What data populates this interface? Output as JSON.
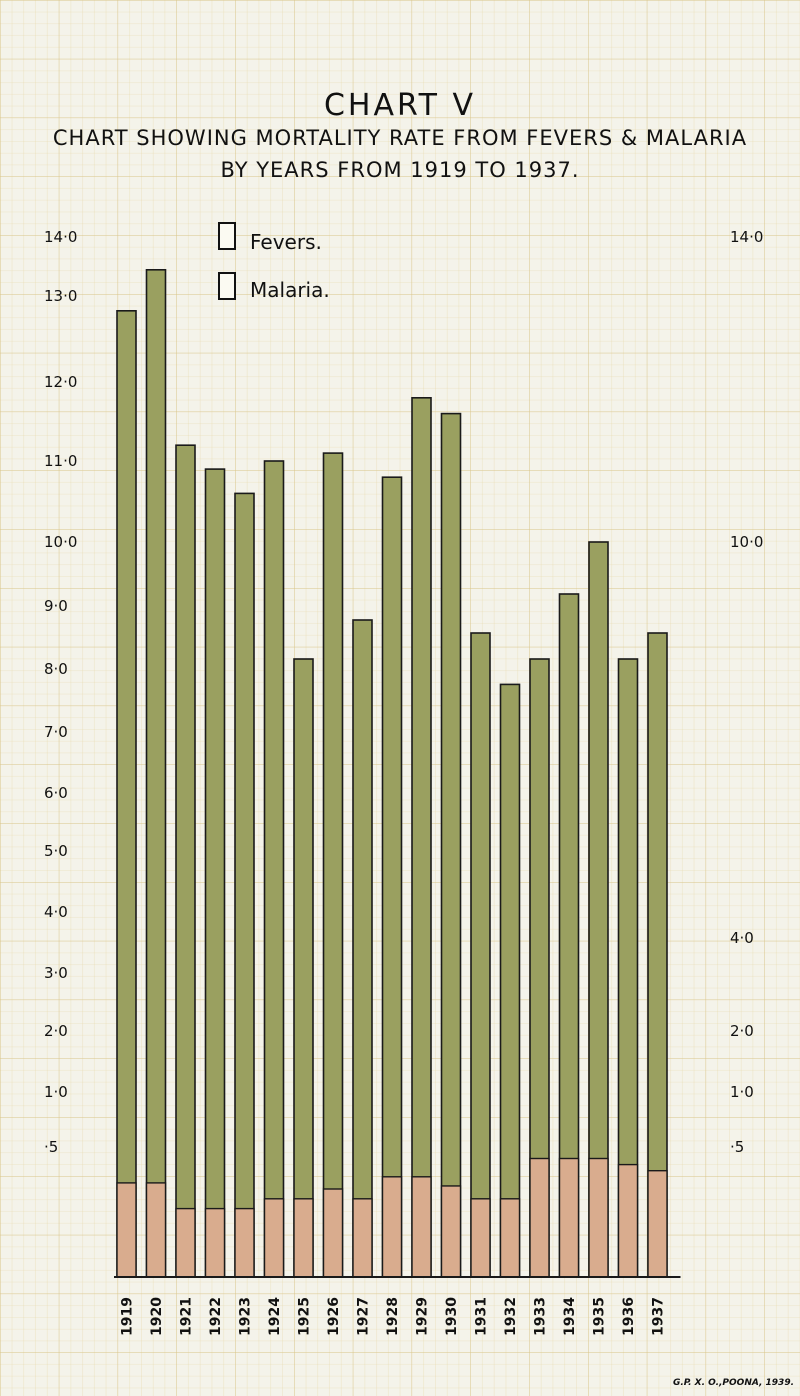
{
  "chart_data": {
    "type": "bar",
    "title": "CHART V",
    "subtitle": "CHART SHOWING MORTALITY RATE FROM FEVERS & MALARIA BY YEARS FROM 1919 TO 1937.",
    "xlabel": "",
    "ylabel": "",
    "categories": [
      "1919",
      "1920",
      "1921",
      "1922",
      "1923",
      "1924",
      "1925",
      "1926",
      "1927",
      "1928",
      "1929",
      "1930",
      "1931",
      "1932",
      "1933",
      "1934",
      "1935",
      "1936",
      "1937"
    ],
    "series": [
      {
        "name": "Fevers.",
        "color": "#9aa060",
        "values": [
          13.1,
          13.6,
          11.2,
          10.9,
          10.6,
          11.0,
          9.1,
          11.1,
          9.4,
          10.8,
          11.8,
          11.6,
          9.3,
          8.8,
          9.1,
          9.6,
          10.0,
          9.1,
          9.3
        ]
      },
      {
        "name": "Malaria.",
        "color": "#d9ac8e",
        "values": [
          1.1,
          1.1,
          0.8,
          0.8,
          0.8,
          0.9,
          0.9,
          1.0,
          0.9,
          1.2,
          1.2,
          1.05,
          0.9,
          0.9,
          1.5,
          1.5,
          1.5,
          1.4,
          1.3
        ]
      }
    ],
    "y_ticks_left": [
      "14·0",
      "13·0",
      "12·0",
      "11·0",
      "10·0",
      "9·0",
      "8·0",
      "7·0",
      "6·0",
      "5·0",
      "4·0",
      "3·0",
      "2·0",
      "1·0",
      "·5"
    ],
    "y_ticks_right": [
      "14·0",
      "10·0",
      "4·0",
      "2·0",
      "1·0",
      "·5"
    ],
    "y_scale": "non-uniform",
    "grid": true,
    "legend_position": "top-center"
  },
  "footer": {
    "credit": "G.P. X. O.,POONA, 1939."
  }
}
